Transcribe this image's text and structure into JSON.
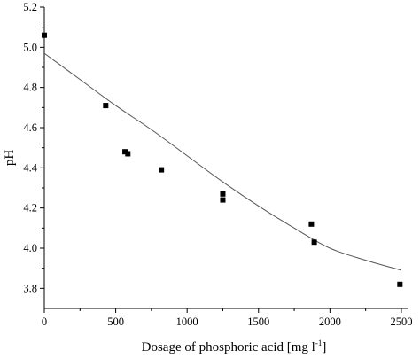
{
  "chart_data": {
    "type": "scatter",
    "xlabel": {
      "main": "Dosage of phosphoric acid [mg l",
      "superscript": "-1",
      "close": "]"
    },
    "ylabel": "pH",
    "xlim": [
      0,
      2550
    ],
    "ylim": [
      3.7,
      5.2
    ],
    "xticks": [
      0,
      500,
      1000,
      1500,
      2000,
      2500
    ],
    "xtick_labels": [
      "0",
      "500",
      "1000",
      "1500",
      "2000",
      "2500"
    ],
    "yticks": [
      3.8,
      4.0,
      4.2,
      4.4,
      4.6,
      4.8,
      5.0,
      5.2
    ],
    "ytick_labels": [
      "3.8",
      "4.0",
      "4.2",
      "4.4",
      "4.6",
      "4.8",
      "5.0",
      "5.2"
    ],
    "grid": false,
    "marker": "square",
    "marker_color": "#000000",
    "series": [
      {
        "points": [
          {
            "x": 0,
            "y": 5.06
          },
          {
            "x": 430,
            "y": 4.71
          },
          {
            "x": 565,
            "y": 4.48
          },
          {
            "x": 585,
            "y": 4.47
          },
          {
            "x": 820,
            "y": 4.39
          },
          {
            "x": 1250,
            "y": 4.27
          },
          {
            "x": 1250,
            "y": 4.24
          },
          {
            "x": 1870,
            "y": 4.12
          },
          {
            "x": 1890,
            "y": 4.03
          },
          {
            "x": 2490,
            "y": 3.82
          }
        ]
      }
    ],
    "fit_curve": {
      "type": "line",
      "color": "#555555",
      "points": [
        {
          "x": 0,
          "y": 4.97
        },
        {
          "x": 250,
          "y": 4.84
        },
        {
          "x": 500,
          "y": 4.71
        },
        {
          "x": 750,
          "y": 4.59
        },
        {
          "x": 1000,
          "y": 4.46
        },
        {
          "x": 1250,
          "y": 4.33
        },
        {
          "x": 1500,
          "y": 4.21
        },
        {
          "x": 1750,
          "y": 4.1
        },
        {
          "x": 2000,
          "y": 4.0
        },
        {
          "x": 2250,
          "y": 3.94
        },
        {
          "x": 2500,
          "y": 3.89
        }
      ]
    }
  }
}
